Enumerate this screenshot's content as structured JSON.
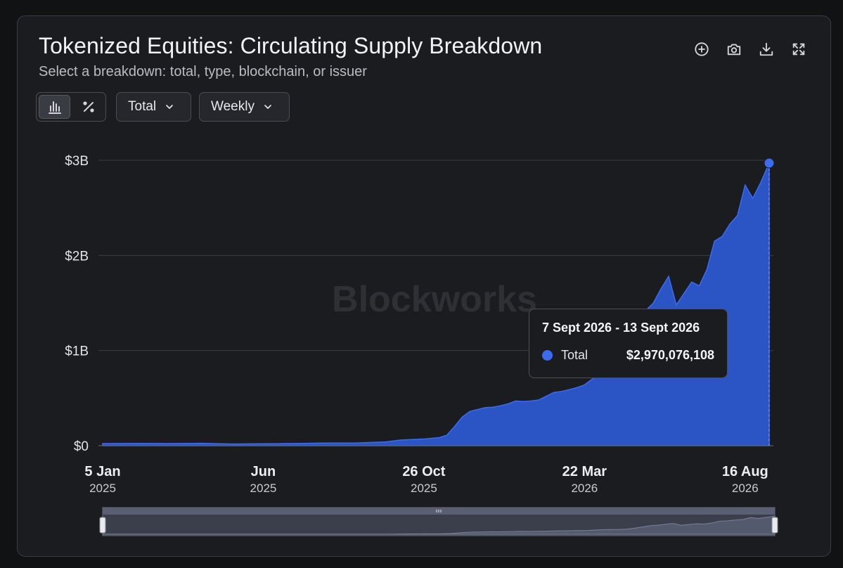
{
  "header": {
    "title": "Tokenized Equities: Circulating Supply Breakdown",
    "subtitle": "Select a breakdown: total, type, blockchain, or issuer"
  },
  "toolbar": {
    "icons": [
      "zoom-in-icon",
      "camera-icon",
      "download-icon",
      "fullscreen-icon"
    ],
    "chart_toggle_icons": [
      "bar-chart-icon",
      "percent-icon"
    ],
    "breakdown_dropdown": "Total",
    "interval_dropdown": "Weekly"
  },
  "watermark": "Blockworks",
  "colors": {
    "area_fill": "#2b54c4",
    "area_line": "#3b6cf0",
    "background": "#1b1c20",
    "grid": "#3a3c42"
  },
  "tooltip": {
    "date_range": "7 Sept 2026 - 13 Sept 2026",
    "series_name": "Total",
    "value": "$2,970,076,108"
  },
  "chart_data": {
    "type": "area",
    "x_axis_ticks": [
      {
        "label": "5 Jan",
        "year": "2025",
        "date": "2025-01-05"
      },
      {
        "label": "Jun",
        "year": "2025",
        "date": "2025-06-01"
      },
      {
        "label": "26 Oct",
        "year": "2025",
        "date": "2025-10-26"
      },
      {
        "label": "22 Mar",
        "year": "2026",
        "date": "2026-03-22"
      },
      {
        "label": "16 Aug",
        "year": "2026",
        "date": "2026-08-16"
      }
    ],
    "y_axis_ticks": [
      "$0",
      "$1B",
      "$2B",
      "$3B"
    ],
    "ylim": [
      0,
      3000000000
    ],
    "xlim": [
      "2025-01-05",
      "2026-09-07"
    ],
    "series": [
      {
        "name": "Total",
        "points": [
          [
            "2025-01-05",
            22000000
          ],
          [
            "2025-02-09",
            24000000
          ],
          [
            "2025-03-09",
            22000000
          ],
          [
            "2025-04-06",
            25000000
          ],
          [
            "2025-05-04",
            18000000
          ],
          [
            "2025-06-01",
            20000000
          ],
          [
            "2025-06-29",
            23000000
          ],
          [
            "2025-07-27",
            27000000
          ],
          [
            "2025-08-24",
            28000000
          ],
          [
            "2025-09-21",
            40000000
          ],
          [
            "2025-10-05",
            60000000
          ],
          [
            "2025-10-26",
            70000000
          ],
          [
            "2025-11-09",
            85000000
          ],
          [
            "2025-11-16",
            110000000
          ],
          [
            "2025-11-23",
            200000000
          ],
          [
            "2025-11-30",
            300000000
          ],
          [
            "2025-12-07",
            360000000
          ],
          [
            "2025-12-14",
            380000000
          ],
          [
            "2025-12-21",
            400000000
          ],
          [
            "2025-12-28",
            405000000
          ],
          [
            "2026-01-04",
            420000000
          ],
          [
            "2026-01-11",
            440000000
          ],
          [
            "2026-01-18",
            470000000
          ],
          [
            "2026-01-25",
            465000000
          ],
          [
            "2026-02-01",
            470000000
          ],
          [
            "2026-02-08",
            480000000
          ],
          [
            "2026-02-15",
            520000000
          ],
          [
            "2026-02-22",
            560000000
          ],
          [
            "2026-03-01",
            570000000
          ],
          [
            "2026-03-08",
            590000000
          ],
          [
            "2026-03-15",
            610000000
          ],
          [
            "2026-03-22",
            640000000
          ],
          [
            "2026-03-29",
            700000000
          ],
          [
            "2026-04-05",
            760000000
          ],
          [
            "2026-04-12",
            780000000
          ],
          [
            "2026-04-19",
            800000000
          ],
          [
            "2026-04-26",
            850000000
          ],
          [
            "2026-05-03",
            1000000000
          ],
          [
            "2026-05-10",
            1200000000
          ],
          [
            "2026-05-17",
            1420000000
          ],
          [
            "2026-05-24",
            1500000000
          ],
          [
            "2026-05-31",
            1650000000
          ],
          [
            "2026-06-07",
            1780000000
          ],
          [
            "2026-06-14",
            1480000000
          ],
          [
            "2026-06-21",
            1600000000
          ],
          [
            "2026-06-28",
            1720000000
          ],
          [
            "2026-07-05",
            1680000000
          ],
          [
            "2026-07-12",
            1850000000
          ],
          [
            "2026-07-19",
            2150000000
          ],
          [
            "2026-07-26",
            2200000000
          ],
          [
            "2026-08-02",
            2330000000
          ],
          [
            "2026-08-09",
            2420000000
          ],
          [
            "2026-08-16",
            2740000000
          ],
          [
            "2026-08-23",
            2600000000
          ],
          [
            "2026-08-30",
            2760000000
          ],
          [
            "2026-09-07",
            2970076108
          ]
        ]
      }
    ],
    "highlighted_point": {
      "date": "2026-09-07",
      "value": 2970076108
    },
    "grid": true,
    "legend": "none",
    "range_selector": true
  }
}
